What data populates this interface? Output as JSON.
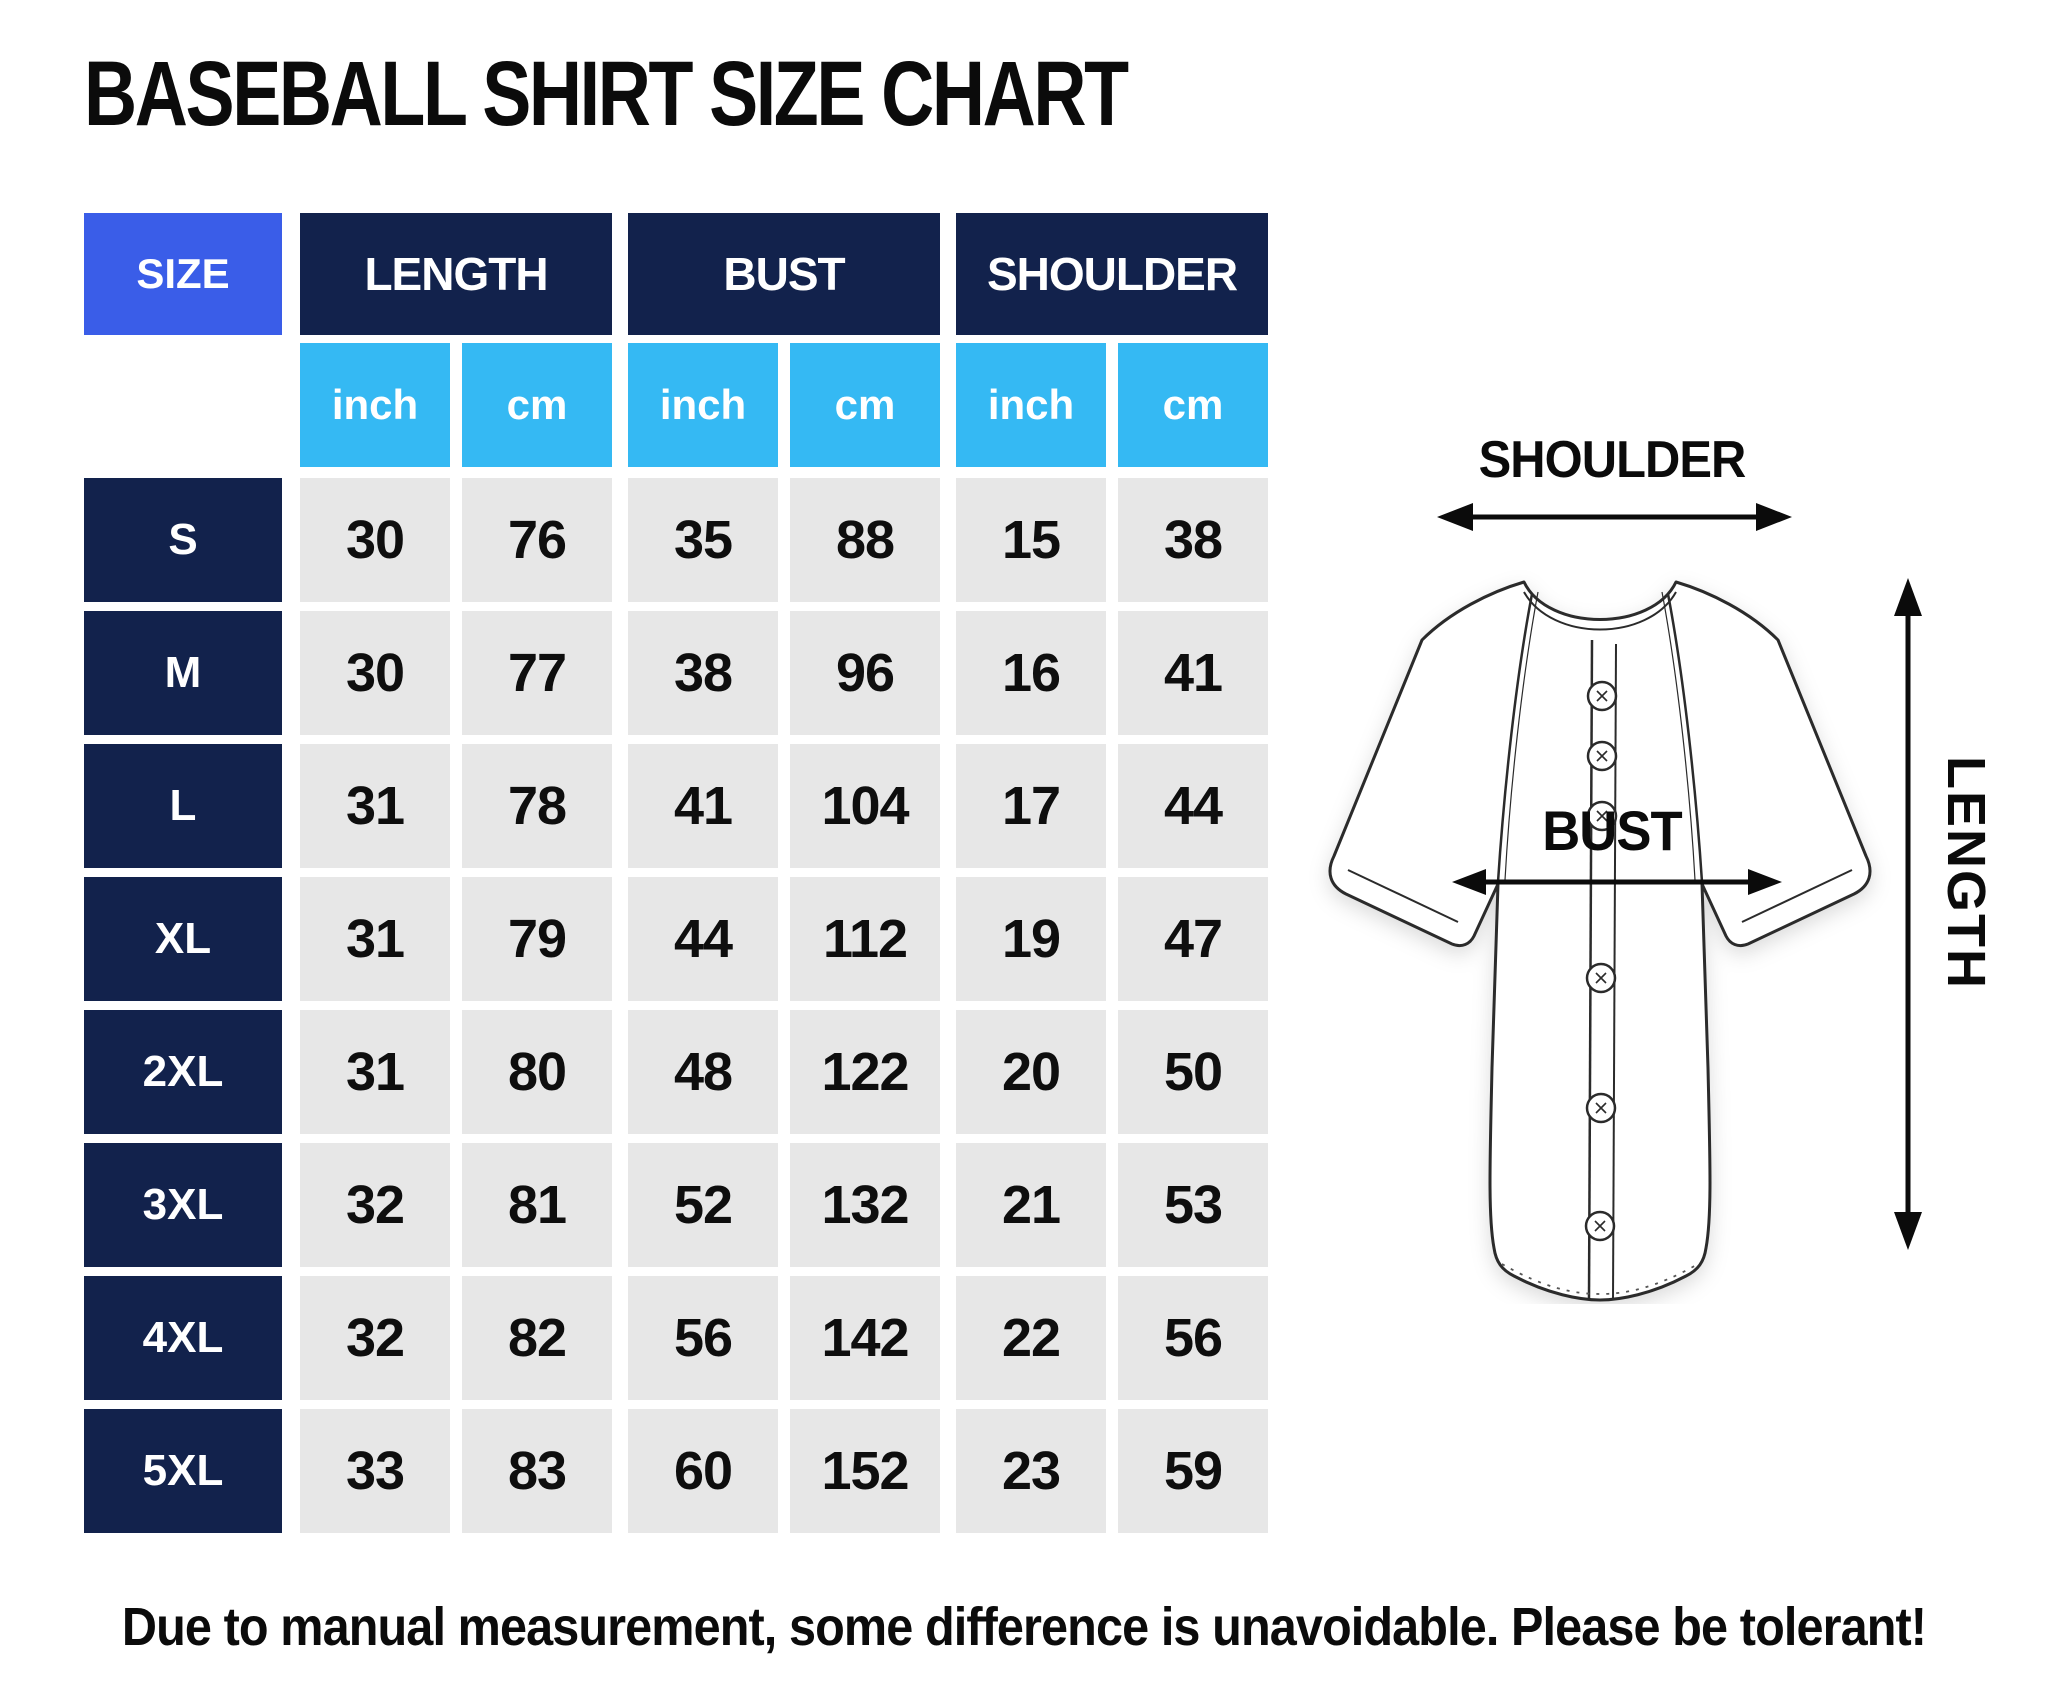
{
  "title": "BASEBALL SHIRT SIZE CHART",
  "footer": "Due to manual measurement, some difference is unavoidable. Please be tolerant!",
  "table": {
    "size_header": "SIZE",
    "groups": [
      "LENGTH",
      "BUST",
      "SHOULDER"
    ],
    "units": [
      "inch",
      "cm",
      "inch",
      "cm",
      "inch",
      "cm"
    ],
    "rows": [
      {
        "size": "S",
        "values": [
          30,
          76,
          35,
          88,
          15,
          38
        ]
      },
      {
        "size": "M",
        "values": [
          30,
          77,
          38,
          96,
          16,
          41
        ]
      },
      {
        "size": "L",
        "values": [
          31,
          78,
          41,
          104,
          17,
          44
        ]
      },
      {
        "size": "XL",
        "values": [
          31,
          79,
          44,
          112,
          19,
          47
        ]
      },
      {
        "size": "2XL",
        "values": [
          31,
          80,
          48,
          122,
          20,
          50
        ]
      },
      {
        "size": "3XL",
        "values": [
          32,
          81,
          52,
          132,
          21,
          53
        ]
      },
      {
        "size": "4XL",
        "values": [
          32,
          82,
          56,
          142,
          22,
          56
        ]
      },
      {
        "size": "5XL",
        "values": [
          33,
          83,
          60,
          152,
          23,
          59
        ]
      }
    ]
  },
  "diagram": {
    "shoulder_label": "SHOULDER",
    "bust_label": "BUST",
    "length_label": "LENGTH"
  },
  "colors": {
    "size_header_blue": "#3a5de8",
    "group_header_navy": "#12224c",
    "unit_cyan": "#35b9f3",
    "cell_gray": "#e7e7e7",
    "text_black": "#0b0b0b",
    "text_white": "#ffffff"
  },
  "chart_data": {
    "type": "table",
    "title": "BASEBALL SHIRT SIZE CHART",
    "columns": [
      "SIZE",
      "LENGTH (inch)",
      "LENGTH (cm)",
      "BUST (inch)",
      "BUST (cm)",
      "SHOULDER (inch)",
      "SHOULDER (cm)"
    ],
    "rows": [
      [
        "S",
        30,
        76,
        35,
        88,
        15,
        38
      ],
      [
        "M",
        30,
        77,
        38,
        96,
        16,
        41
      ],
      [
        "L",
        31,
        78,
        41,
        104,
        17,
        44
      ],
      [
        "XL",
        31,
        79,
        44,
        112,
        19,
        47
      ],
      [
        "2XL",
        31,
        80,
        48,
        122,
        20,
        50
      ],
      [
        "3XL",
        32,
        81,
        52,
        132,
        21,
        53
      ],
      [
        "4XL",
        32,
        82,
        56,
        142,
        22,
        56
      ],
      [
        "5XL",
        33,
        83,
        60,
        152,
        23,
        59
      ]
    ],
    "note": "Due to manual measurement, some difference is unavoidable. Please be tolerant!"
  }
}
